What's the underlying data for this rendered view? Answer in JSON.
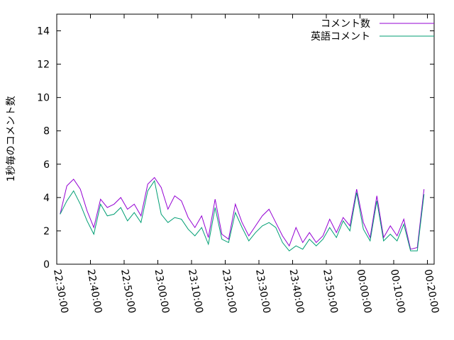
{
  "chart_data": {
    "type": "line",
    "ylabel": "1秒毎のコメント数",
    "x": [
      "22:31:00",
      "22:33:00",
      "22:35:00",
      "22:37:00",
      "22:39:00",
      "22:41:00",
      "22:43:00",
      "22:45:00",
      "22:47:00",
      "22:49:00",
      "22:51:00",
      "22:53:00",
      "22:55:00",
      "22:57:00",
      "22:59:00",
      "23:01:00",
      "23:03:00",
      "23:05:00",
      "23:07:00",
      "23:09:00",
      "23:11:00",
      "23:13:00",
      "23:15:00",
      "23:17:00",
      "23:19:00",
      "23:21:00",
      "23:23:00",
      "23:25:00",
      "23:27:00",
      "23:29:00",
      "23:31:00",
      "23:33:00",
      "23:35:00",
      "23:37:00",
      "23:39:00",
      "23:41:00",
      "23:43:00",
      "23:45:00",
      "23:47:00",
      "23:49:00",
      "23:51:00",
      "23:53:00",
      "23:55:00",
      "23:57:00",
      "23:59:00",
      "00:01:00",
      "00:03:00",
      "00:05:00",
      "00:07:00",
      "00:09:00",
      "00:11:00",
      "00:13:00",
      "00:15:00",
      "00:17:00",
      "00:19:00"
    ],
    "series": [
      {
        "name": "コメント数",
        "color": "#9400d3",
        "values": [
          3.0,
          4.7,
          5.1,
          4.5,
          3.2,
          2.2,
          3.9,
          3.4,
          3.6,
          4.0,
          3.3,
          3.6,
          2.9,
          4.8,
          5.2,
          4.6,
          3.3,
          4.1,
          3.8,
          2.8,
          2.2,
          2.9,
          1.6,
          3.9,
          1.8,
          1.5,
          3.6,
          2.5,
          1.7,
          2.3,
          2.9,
          3.3,
          2.5,
          1.7,
          1.1,
          2.2,
          1.3,
          1.9,
          1.3,
          1.7,
          2.7,
          1.9,
          2.8,
          2.3,
          4.5,
          2.5,
          1.6,
          4.1,
          1.6,
          2.3,
          1.7,
          2.7,
          0.9,
          1.0,
          4.5
        ]
      },
      {
        "name": "英語コメント",
        "color": "#009e73",
        "values": [
          3.0,
          3.8,
          4.4,
          3.6,
          2.6,
          1.8,
          3.6,
          2.9,
          3.0,
          3.4,
          2.6,
          3.1,
          2.5,
          4.4,
          5.0,
          3.0,
          2.5,
          2.8,
          2.7,
          2.1,
          1.7,
          2.2,
          1.2,
          3.4,
          1.5,
          1.3,
          3.1,
          2.2,
          1.4,
          1.9,
          2.3,
          2.5,
          2.2,
          1.3,
          0.8,
          1.1,
          0.9,
          1.5,
          1.1,
          1.5,
          2.2,
          1.6,
          2.6,
          2.0,
          4.3,
          2.1,
          1.4,
          3.8,
          1.4,
          1.8,
          1.4,
          2.4,
          0.8,
          0.8,
          4.2
        ]
      }
    ],
    "xlim": [
      "22:30:00",
      "00:22:00"
    ],
    "xticks": [
      "22:30:00",
      "22:40:00",
      "22:50:00",
      "23:00:00",
      "23:10:00",
      "23:20:00",
      "23:30:00",
      "23:40:00",
      "23:50:00",
      "00:00:00",
      "00:10:00",
      "00:20:00"
    ],
    "ylim": [
      0,
      15
    ],
    "yticks": [
      0,
      2,
      4,
      6,
      8,
      10,
      12,
      14
    ],
    "legend": "top-right"
  }
}
